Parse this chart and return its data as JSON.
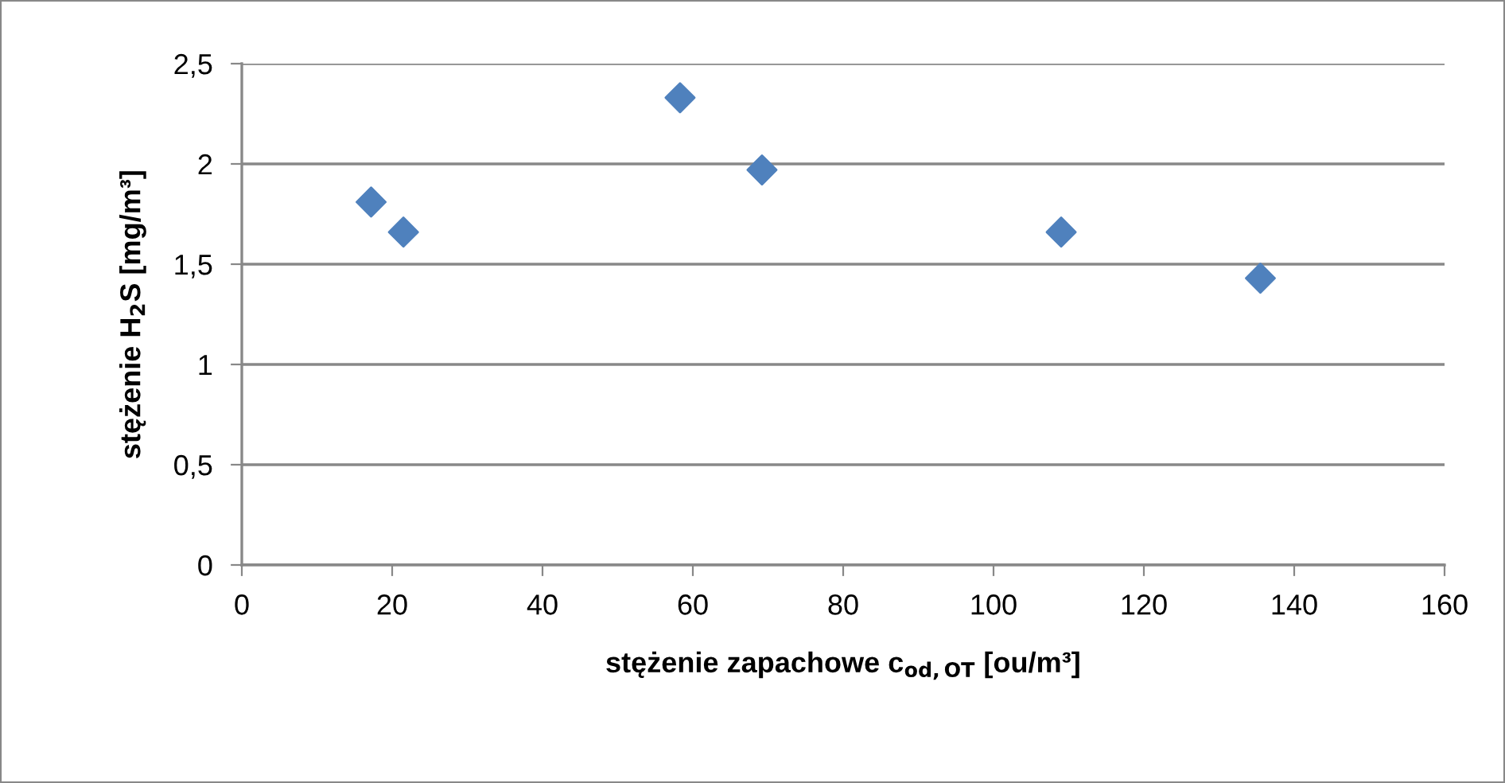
{
  "chart_data": {
    "type": "scatter",
    "xlabel": "stężenie zapachowe c$_{od,OT}$ [ou/m³]",
    "ylabel": "stężenie H$_{2}$S [mg/m³]",
    "x": [
      17.2,
      21.5,
      58.3,
      69.2,
      109.0,
      135.5
    ],
    "series": [
      {
        "color": "#4f81bd",
        "values": [
          1.81,
          1.66,
          2.33,
          1.97,
          1.66,
          1.43
        ]
      }
    ],
    "marker": "diamond",
    "xlim": [
      0,
      160
    ],
    "xticks": [
      0,
      20,
      40,
      60,
      80,
      100,
      120,
      140,
      160
    ],
    "ylim": [
      0,
      2.5
    ],
    "yticks": [
      0,
      {
        "value": 0.5,
        "label": "0,5"
      },
      1,
      {
        "value": 1.5,
        "label": "1,5"
      },
      2,
      {
        "value": 2.5,
        "label": "2,5"
      }
    ],
    "grid": "y",
    "legend": false
  }
}
